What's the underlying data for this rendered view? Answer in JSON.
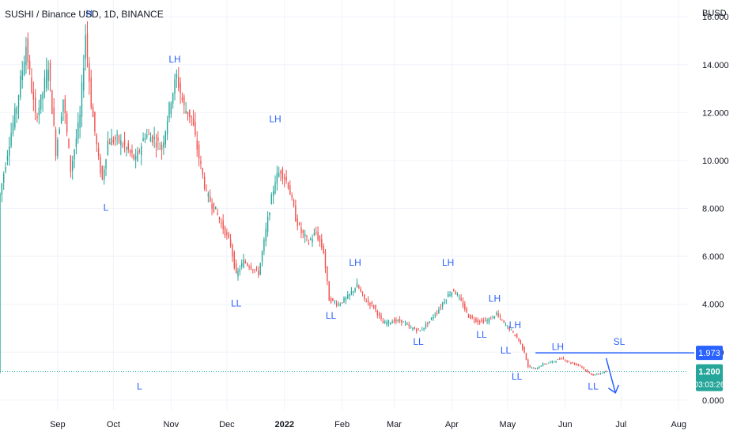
{
  "header": {
    "title": "SUSHI / Binance USD, 1D, BINANCE",
    "currency": "BUSD"
  },
  "colors": {
    "up": "#26a69a",
    "down": "#ef5350",
    "annotation": "#2962ff",
    "last_price": "#26a69a",
    "grid": "#f0f3fa"
  },
  "chart_data": {
    "type": "candlestick",
    "x_range": [
      "2021-08-01",
      "2022-08-06"
    ],
    "y_range": [
      -0.4,
      16.7
    ],
    "y_ticks": [
      "0.000",
      "2.000",
      "4.000",
      "6.000",
      "8.000",
      "10.000",
      "12.000",
      "14.000",
      "16.000"
    ],
    "x_ticks": [
      {
        "date": "2021-09-01",
        "label": "Sep"
      },
      {
        "date": "2021-10-01",
        "label": "Oct"
      },
      {
        "date": "2021-11-01",
        "label": "Nov"
      },
      {
        "date": "2021-12-01",
        "label": "Dec"
      },
      {
        "date": "2022-01-01",
        "label": "2022"
      },
      {
        "date": "2022-02-01",
        "label": "Feb"
      },
      {
        "date": "2022-03-01",
        "label": "Mar"
      },
      {
        "date": "2022-04-01",
        "label": "Apr"
      },
      {
        "date": "2022-05-01",
        "label": "May"
      },
      {
        "date": "2022-06-01",
        "label": "Jun"
      },
      {
        "date": "2022-07-01",
        "label": "Jul"
      },
      {
        "date": "2022-08-01",
        "label": "Aug"
      }
    ],
    "price_path": [
      [
        "2021-08-01",
        8.6
      ],
      [
        "2021-08-06",
        10.8
      ],
      [
        "2021-08-10",
        12.3
      ],
      [
        "2021-08-15",
        14.8
      ],
      [
        "2021-08-20",
        11.8
      ],
      [
        "2021-08-23",
        12.5
      ],
      [
        "2021-08-27",
        14.0
      ],
      [
        "2021-08-31",
        10.4
      ],
      [
        "2021-09-04",
        12.6
      ],
      [
        "2021-09-08",
        9.6
      ],
      [
        "2021-09-13",
        11.8
      ],
      [
        "2021-09-16",
        15.3
      ],
      [
        "2021-09-19",
        12.4
      ],
      [
        "2021-09-23",
        10.0
      ],
      [
        "2021-09-25",
        9.2
      ],
      [
        "2021-09-28",
        10.8
      ],
      [
        "2021-10-03",
        10.9
      ],
      [
        "2021-10-08",
        10.5
      ],
      [
        "2021-10-13",
        10.0
      ],
      [
        "2021-10-18",
        11.1
      ],
      [
        "2021-10-23",
        10.9
      ],
      [
        "2021-10-27",
        10.5
      ],
      [
        "2021-11-01",
        12.6
      ],
      [
        "2021-11-04",
        13.5
      ],
      [
        "2021-11-08",
        12.2
      ],
      [
        "2021-11-12",
        11.8
      ],
      [
        "2021-11-15",
        10.5
      ],
      [
        "2021-11-20",
        8.6
      ],
      [
        "2021-11-25",
        7.9
      ],
      [
        "2021-11-30",
        7.0
      ],
      [
        "2021-12-03",
        6.5
      ],
      [
        "2021-12-06",
        5.2
      ],
      [
        "2021-12-10",
        5.8
      ],
      [
        "2021-12-15",
        5.5
      ],
      [
        "2021-12-18",
        5.3
      ],
      [
        "2021-12-21",
        6.6
      ],
      [
        "2021-12-24",
        8.0
      ],
      [
        "2021-12-27",
        9.2
      ],
      [
        "2021-12-30",
        9.6
      ],
      [
        "2022-01-03",
        9.0
      ],
      [
        "2022-01-07",
        7.6
      ],
      [
        "2022-01-10",
        7.0
      ],
      [
        "2022-01-14",
        6.6
      ],
      [
        "2022-01-18",
        7.0
      ],
      [
        "2022-01-22",
        6.2
      ],
      [
        "2022-01-25",
        4.2
      ],
      [
        "2022-01-30",
        4.0
      ],
      [
        "2022-02-04",
        4.3
      ],
      [
        "2022-02-09",
        4.8
      ],
      [
        "2022-02-13",
        4.2
      ],
      [
        "2022-02-18",
        3.9
      ],
      [
        "2022-02-23",
        3.2
      ],
      [
        "2022-02-28",
        3.3
      ],
      [
        "2022-03-05",
        3.3
      ],
      [
        "2022-03-10",
        3.0
      ],
      [
        "2022-03-15",
        2.9
      ],
      [
        "2022-03-20",
        3.3
      ],
      [
        "2022-03-25",
        3.8
      ],
      [
        "2022-03-30",
        4.4
      ],
      [
        "2022-04-02",
        4.6
      ],
      [
        "2022-04-06",
        4.1
      ],
      [
        "2022-04-10",
        3.5
      ],
      [
        "2022-04-15",
        3.3
      ],
      [
        "2022-04-20",
        3.3
      ],
      [
        "2022-04-25",
        3.6
      ],
      [
        "2022-04-29",
        3.2
      ],
      [
        "2022-05-03",
        2.9
      ],
      [
        "2022-05-07",
        2.5
      ],
      [
        "2022-05-10",
        2.0
      ],
      [
        "2022-05-12",
        1.4
      ],
      [
        "2022-05-16",
        1.3
      ],
      [
        "2022-05-20",
        1.5
      ],
      [
        "2022-05-25",
        1.6
      ],
      [
        "2022-05-30",
        1.75
      ],
      [
        "2022-06-04",
        1.55
      ],
      [
        "2022-06-09",
        1.45
      ],
      [
        "2022-06-13",
        1.15
      ],
      [
        "2022-06-16",
        1.05
      ],
      [
        "2022-06-19",
        1.1
      ],
      [
        "2022-06-23",
        1.2
      ]
    ],
    "annotations": [
      {
        "text": "H",
        "date": "2021-09-18",
        "price": 16.0
      },
      {
        "text": "L",
        "date": "2021-09-27",
        "price": 7.9
      },
      {
        "text": "LH",
        "date": "2021-11-03",
        "price": 14.1
      },
      {
        "text": "LH",
        "date": "2021-12-27",
        "price": 11.6
      },
      {
        "text": "LL",
        "date": "2021-12-06",
        "price": 3.9
      },
      {
        "text": "LL",
        "date": "2022-01-26",
        "price": 3.4
      },
      {
        "text": "LH",
        "date": "2022-02-08",
        "price": 5.6
      },
      {
        "text": "LL",
        "date": "2022-03-14",
        "price": 2.3
      },
      {
        "text": "LH",
        "date": "2022-03-30",
        "price": 5.6
      },
      {
        "text": "LL",
        "date": "2022-04-17",
        "price": 2.6
      },
      {
        "text": "LH",
        "date": "2022-04-24",
        "price": 4.1
      },
      {
        "text": "LH",
        "date": "2022-05-05",
        "price": 3.0
      },
      {
        "text": "LL",
        "date": "2022-04-30",
        "price": 1.95
      },
      {
        "text": "LL",
        "date": "2022-05-06",
        "price": 0.85
      },
      {
        "text": "LH",
        "date": "2022-05-28",
        "price": 2.1
      },
      {
        "text": "LL",
        "date": "2022-06-16",
        "price": 0.45
      },
      {
        "text": "L",
        "date": "2021-10-15",
        "price": 0.45
      },
      {
        "text": "SL",
        "date": "2022-06-30",
        "price": 2.3
      }
    ],
    "horizontal_line": {
      "price": 1.973,
      "from_date": "2022-05-16",
      "label": "1.973",
      "color": "#2962ff"
    },
    "last_price": {
      "price": 1.2,
      "label": "1.200",
      "countdown": "03:03:26"
    },
    "arrow": {
      "from": [
        "2022-06-23",
        1.75
      ],
      "to": [
        "2022-06-28",
        0.3
      ]
    }
  }
}
